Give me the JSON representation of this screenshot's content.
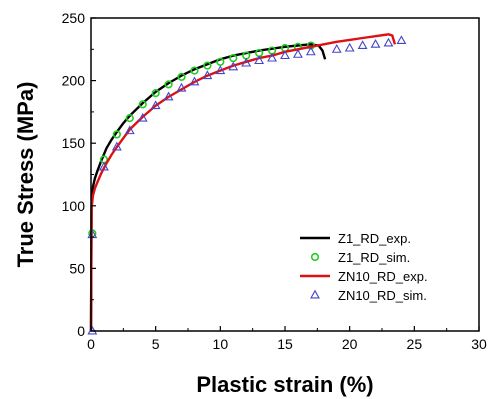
{
  "chart_data": {
    "type": "line",
    "xlabel": "Plastic strain (%)",
    "ylabel": "True Stress (MPa)",
    "xlim": [
      0,
      30
    ],
    "ylim": [
      0,
      250
    ],
    "xticks": [
      0,
      5,
      10,
      15,
      20,
      25,
      30
    ],
    "yticks": [
      0,
      50,
      100,
      150,
      200,
      250
    ],
    "grid": false,
    "legend_position": "lower-right",
    "series": [
      {
        "name": "Z1_RD_exp.",
        "style": "line",
        "color": "#000000",
        "x": [
          0,
          0.05,
          0.15,
          0.3,
          0.5,
          0.8,
          1.2,
          1.6,
          2,
          2.5,
          3,
          4,
          5,
          6,
          7,
          8,
          9,
          10,
          11,
          12,
          13,
          14,
          15,
          16,
          17,
          17.6,
          17.9,
          18.1
        ],
        "y": [
          0,
          100,
          115,
          122,
          128,
          136,
          146,
          153,
          159,
          166,
          172,
          182,
          191,
          198,
          204,
          209,
          213,
          217,
          220,
          222,
          224,
          225.5,
          227,
          228,
          229,
          228,
          224,
          217
        ]
      },
      {
        "name": "Z1_RD_sim.",
        "style": "marker",
        "marker": "circle",
        "color": "#22cc22",
        "x": [
          0.1,
          1,
          2,
          3,
          4,
          5,
          6,
          7,
          8,
          9,
          10,
          11,
          12,
          13,
          14,
          15,
          16,
          17
        ],
        "y": [
          78,
          137,
          157,
          170,
          181,
          190,
          197,
          203,
          208,
          212,
          215,
          218,
          220,
          222,
          224,
          226,
          227,
          228
        ]
      },
      {
        "name": "ZN10_RD_exp.",
        "style": "line",
        "color": "#dd1111",
        "x": [
          0,
          0.05,
          0.15,
          0.3,
          0.5,
          0.8,
          1.2,
          1.6,
          2,
          2.5,
          3,
          4,
          5,
          6,
          7,
          8,
          9,
          10,
          11,
          12,
          13,
          14,
          15,
          16,
          17,
          18,
          19,
          20,
          21,
          22,
          23,
          23.3,
          23.5
        ],
        "y": [
          0,
          98,
          108,
          114,
          119,
          126,
          134,
          141,
          147,
          154,
          161,
          171,
          180,
          187,
          193,
          199,
          204,
          208,
          212,
          215,
          218,
          220,
          223,
          225,
          227,
          229,
          231,
          232.5,
          234,
          235.5,
          237,
          236,
          229
        ]
      },
      {
        "name": "ZN10_RD_sim.",
        "style": "marker",
        "marker": "triangle",
        "color": "#4444cc",
        "x": [
          0.1,
          0.1,
          1,
          2,
          3,
          4,
          5,
          6,
          7,
          8,
          9,
          10,
          11,
          12,
          13,
          14,
          15,
          16,
          17,
          19,
          20,
          21,
          22,
          23,
          24
        ],
        "y": [
          0,
          77,
          131,
          147,
          160,
          170,
          180,
          187,
          194,
          199,
          204,
          208,
          211,
          214,
          216,
          218,
          220,
          221,
          223,
          225,
          226,
          228,
          229,
          230,
          232
        ]
      }
    ]
  }
}
